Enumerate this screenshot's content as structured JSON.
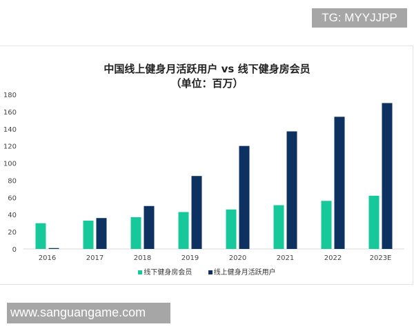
{
  "watermarks": {
    "top": "TG: MYYJJPP",
    "bottom": "www.sanguangame.com"
  },
  "chart_data": {
    "type": "bar",
    "title": "中国线上健身月活跃用户 vs 线下健身房会员",
    "subtitle": "（单位：百万）",
    "categories": [
      "2016",
      "2017",
      "2018",
      "2019",
      "2020",
      "2021",
      "2022",
      "2023E"
    ],
    "series": [
      {
        "name": "线下健身房会员",
        "color": "#17c99a",
        "values": [
          30,
          33,
          37,
          43,
          46,
          51,
          56,
          62
        ]
      },
      {
        "name": "线上健身月活跃用户",
        "color": "#0d3160",
        "values": [
          1,
          36,
          50,
          85,
          120,
          137,
          154,
          170
        ]
      }
    ],
    "ylim": [
      0,
      180
    ],
    "yticks": [
      0,
      20,
      40,
      60,
      80,
      100,
      120,
      140,
      160,
      180
    ],
    "grid": false,
    "legend": "bottom"
  }
}
